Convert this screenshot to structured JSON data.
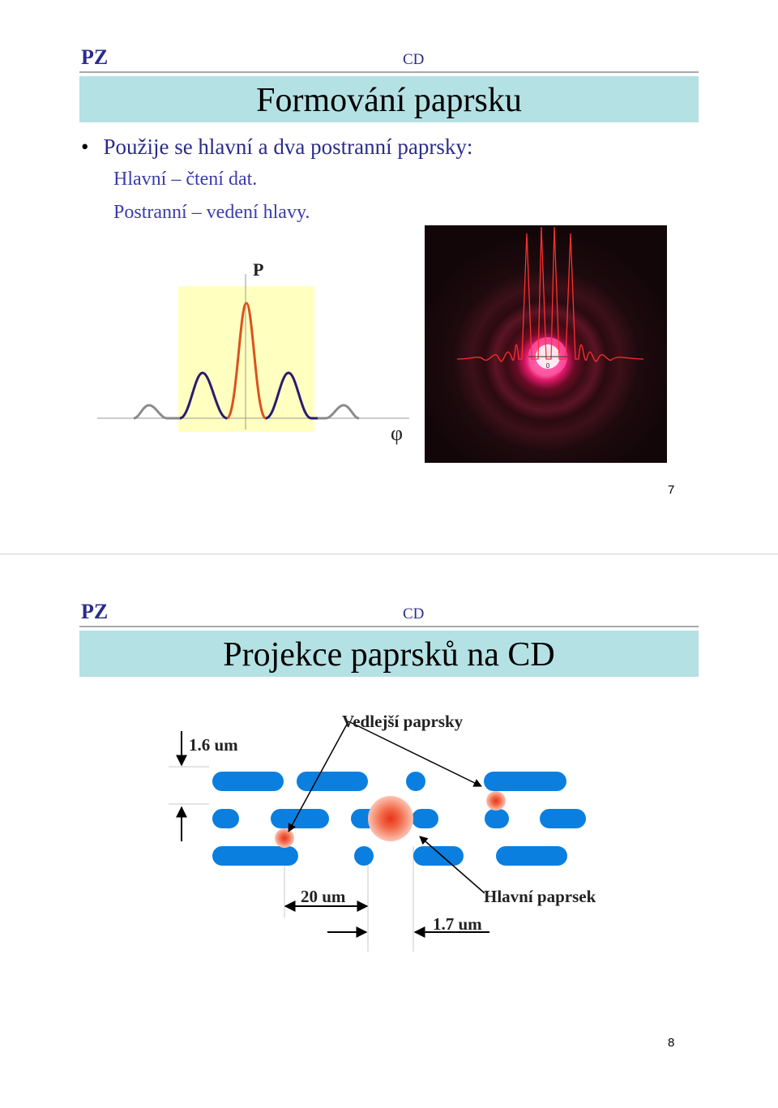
{
  "slide1": {
    "header_left": "PZ",
    "header_center": "CD",
    "title": "Formování paprsku",
    "bullet": "Použije se hlavní a dva postranní paprsky:",
    "sub_items": [
      "Hlavní – čtení dat.",
      "Postranní – vedení hlavy."
    ],
    "plot_y_label": "P",
    "plot_x_label": "φ",
    "photo_center_label": "0",
    "page_number": "7"
  },
  "slide2": {
    "header_left": "PZ",
    "header_center": "CD",
    "title": "Projekce paprsků na CD",
    "label_side_beams": "Vedlejší paprsky",
    "label_track_pitch": "1.6 um",
    "label_spacing": "20 um",
    "label_main_beam": "Hlavní paprsek",
    "label_pit_width": "1.7 um",
    "page_number": "8"
  },
  "colors": {
    "header_text": "#2a2c8c",
    "title_bar": "#b4e1e4",
    "pit": "#0a7fe0",
    "main_lobe": "#d9531e",
    "side_lobe": "#2a1a6e",
    "outer_lobe": "#8a8a8a",
    "plot_background": "#ffffc0"
  }
}
